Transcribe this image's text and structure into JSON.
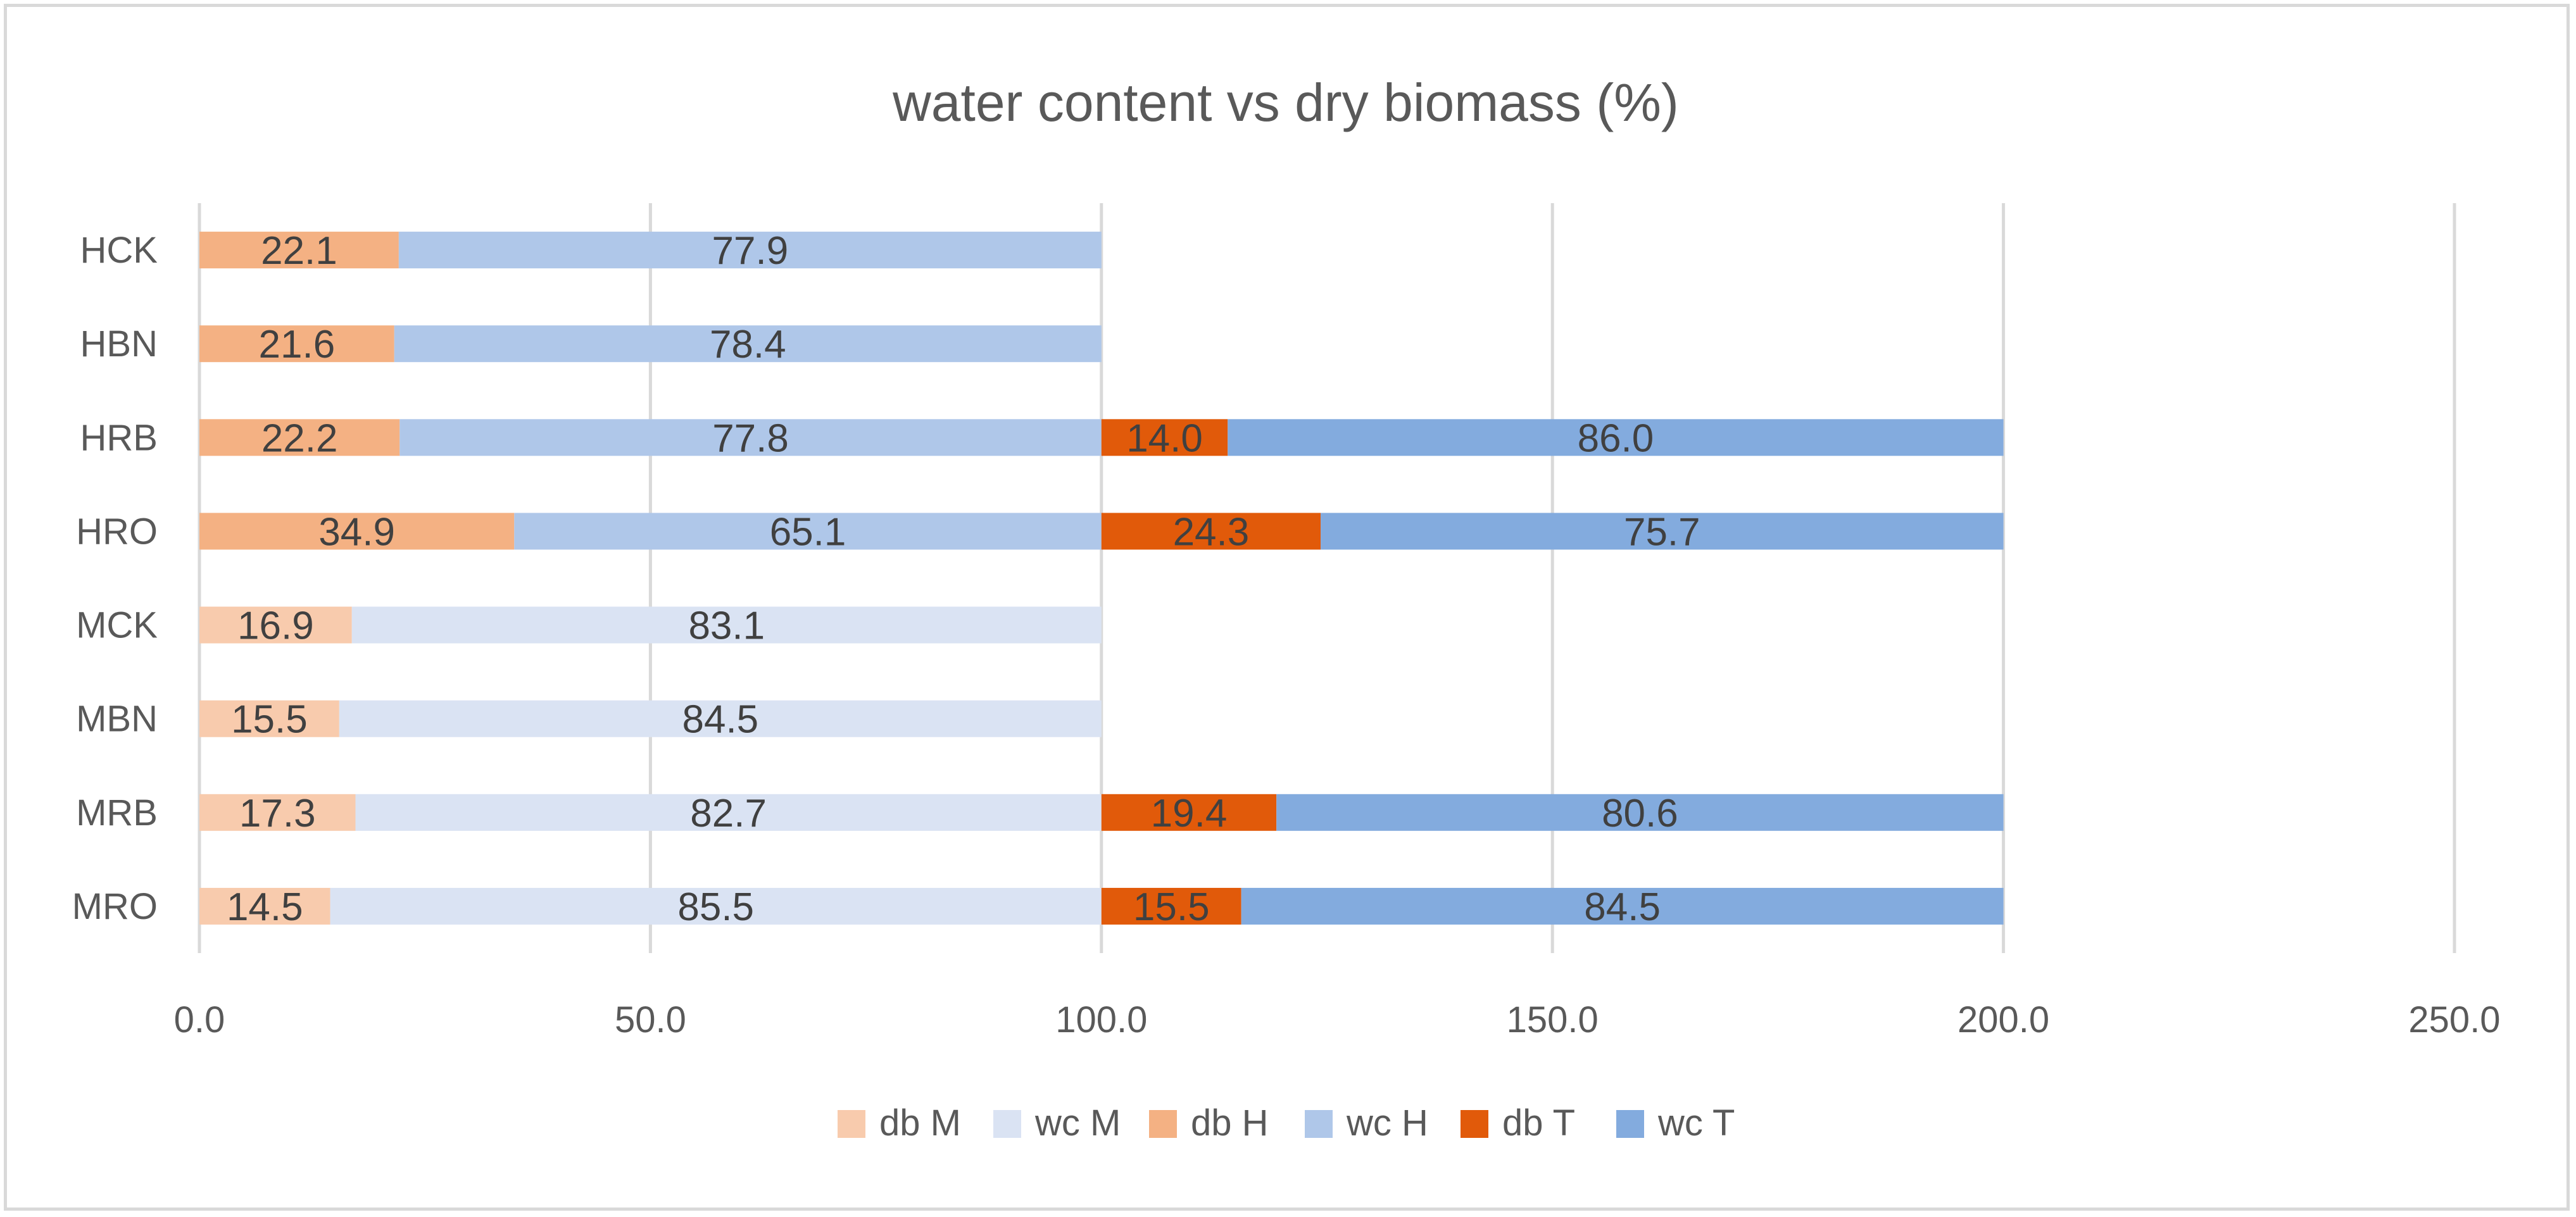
{
  "chart_data": {
    "type": "bar",
    "orientation": "horizontal",
    "stacked": true,
    "title": "water content vs dry biomass (%)",
    "xlabel": "",
    "ylabel": "",
    "xlim": [
      0,
      250
    ],
    "x_ticks": [
      "0.0",
      "50.0",
      "100.0",
      "150.0",
      "200.0",
      "250.0"
    ],
    "x_tick_values": [
      0,
      50,
      100,
      150,
      200,
      250
    ],
    "grid": true,
    "legend_position": "bottom",
    "categories": [
      "HCK",
      "HBN",
      "HRB",
      "HRO",
      "MCK",
      "MBN",
      "MRB",
      "MRO"
    ],
    "series": [
      {
        "name": "db M",
        "color": "#F8CBAD",
        "values": [
          null,
          null,
          null,
          null,
          16.9,
          15.5,
          17.3,
          14.5
        ],
        "labels": [
          null,
          null,
          null,
          null,
          "16.9",
          "15.5",
          "17.3",
          "14.5"
        ]
      },
      {
        "name": "wc M",
        "color": "#DAE3F3",
        "values": [
          null,
          null,
          null,
          null,
          83.1,
          84.5,
          82.7,
          85.5
        ],
        "labels": [
          null,
          null,
          null,
          null,
          "83.1",
          "84.5",
          "82.7",
          "85.5"
        ]
      },
      {
        "name": "db H",
        "color": "#F4B183",
        "values": [
          22.1,
          21.6,
          22.2,
          34.9,
          null,
          null,
          null,
          null
        ],
        "labels": [
          "22.1",
          "21.6",
          "22.2",
          "34.9",
          null,
          null,
          null,
          null
        ]
      },
      {
        "name": "wc H",
        "color": "#AFC7E9",
        "values": [
          77.9,
          78.4,
          77.8,
          65.1,
          null,
          null,
          null,
          null
        ],
        "labels": [
          "77.9",
          "78.4",
          "77.8",
          "65.1",
          null,
          null,
          null,
          null
        ]
      },
      {
        "name": "db T",
        "color": "#E15A0A",
        "values": [
          null,
          null,
          14.0,
          24.3,
          null,
          null,
          19.4,
          15.5
        ],
        "labels": [
          null,
          null,
          "14.0",
          "24.3",
          null,
          null,
          "19.4",
          "15.5"
        ]
      },
      {
        "name": "wc T",
        "color": "#83ABDE",
        "values": [
          null,
          null,
          86.0,
          75.7,
          null,
          null,
          80.6,
          84.5
        ],
        "labels": [
          null,
          null,
          "86.0",
          "75.7",
          null,
          null,
          "80.6",
          "84.5"
        ]
      }
    ]
  }
}
